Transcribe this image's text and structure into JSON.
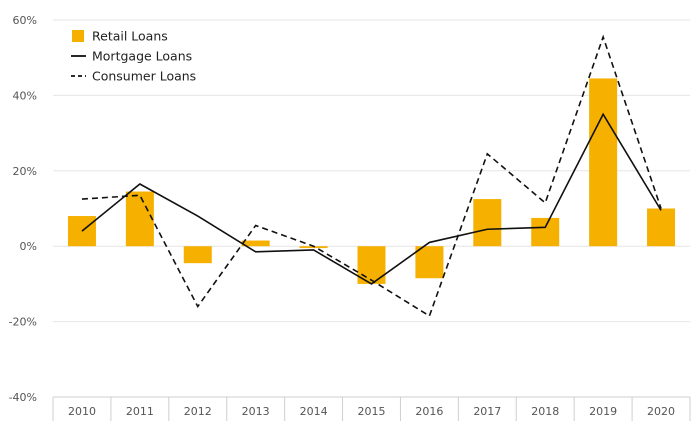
{
  "chart_data": {
    "type": "bar",
    "categories": [
      "2010",
      "2011",
      "2012",
      "2013",
      "2014",
      "2015",
      "2016",
      "2017",
      "2018",
      "2019",
      "2020"
    ],
    "series": [
      {
        "name": "Retail Loans",
        "kind": "bar",
        "color": "#f5b000",
        "values": [
          8,
          14.5,
          -4.5,
          1.5,
          -0.5,
          -10,
          -8.5,
          12.5,
          7.5,
          44.5,
          10
        ]
      },
      {
        "name": "Mortgage Loans",
        "kind": "line",
        "dash": "solid",
        "color": "#111111",
        "values": [
          4,
          16.5,
          8,
          -1.5,
          -1,
          -10,
          1,
          4.5,
          5,
          35,
          9.5
        ]
      },
      {
        "name": "Consumer Loans",
        "kind": "line",
        "dash": "dashed",
        "color": "#111111",
        "values": [
          12.5,
          13.5,
          -16,
          5.5,
          0,
          -9,
          -18.5,
          24.5,
          11.5,
          55.5,
          10
        ]
      }
    ],
    "yticks": [
      "60%",
      "40%",
      "20%",
      "0%",
      "-20%",
      "-40%"
    ],
    "ytick_values": [
      60,
      40,
      20,
      0,
      -20,
      -40
    ],
    "ylim": [
      -40,
      60
    ],
    "grid": true,
    "legend_position": "top-left",
    "title": "",
    "xlabel": "",
    "ylabel": ""
  }
}
